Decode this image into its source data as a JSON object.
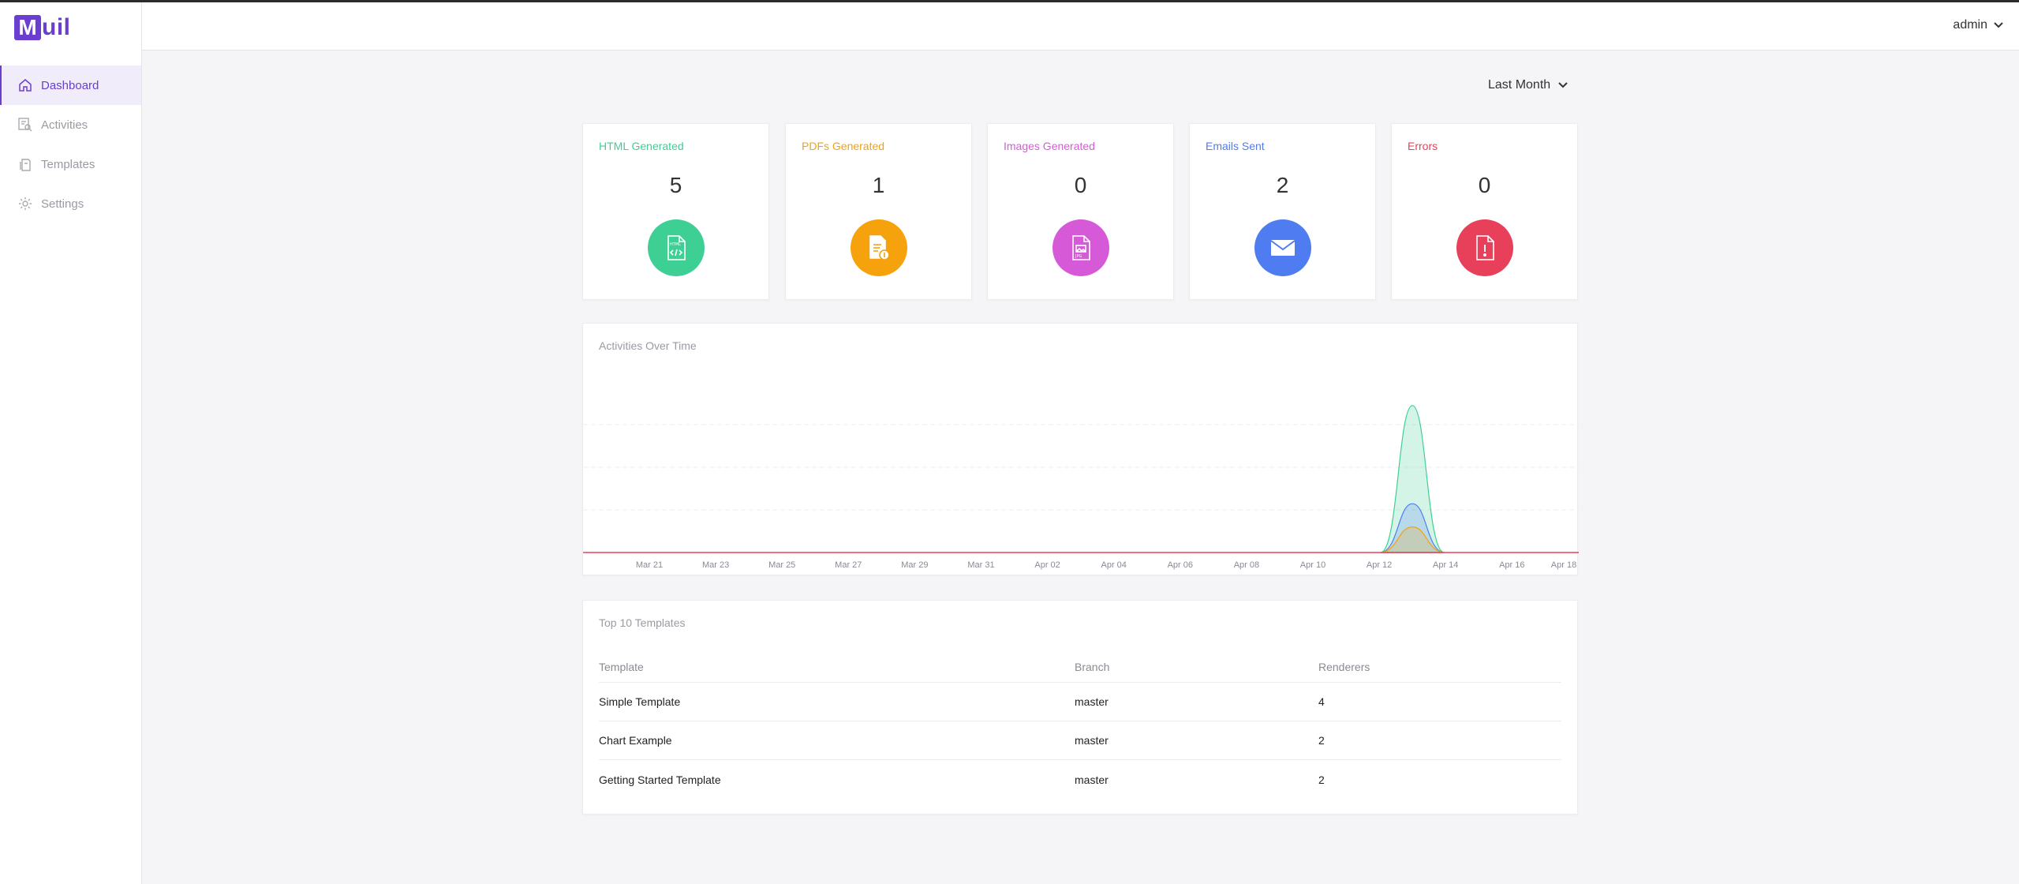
{
  "app": {
    "logo_letter": "M",
    "logo_rest": "uil",
    "user": "admin"
  },
  "sidebar": {
    "items": [
      {
        "label": "Dashboard",
        "icon": "home-icon",
        "active": true
      },
      {
        "label": "Activities",
        "icon": "activities-icon",
        "active": false
      },
      {
        "label": "Templates",
        "icon": "templates-icon",
        "active": false
      },
      {
        "label": "Settings",
        "icon": "gear-icon",
        "active": false
      }
    ]
  },
  "range": {
    "selected": "Last Month"
  },
  "stats": [
    {
      "title": "HTML Generated",
      "value": "5",
      "color": "#3ecf94",
      "icon": "html-file-icon"
    },
    {
      "title": "PDFs Generated",
      "value": "1",
      "color": "#f6a20c",
      "icon": "pdf-file-icon"
    },
    {
      "title": "Images Generated",
      "value": "0",
      "color": "#d65ad8",
      "icon": "image-file-icon"
    },
    {
      "title": "Emails Sent",
      "value": "2",
      "color": "#4f7cf0",
      "icon": "mail-icon"
    },
    {
      "title": "Errors",
      "value": "0",
      "color": "#e8405a",
      "icon": "error-file-icon"
    }
  ],
  "chart": {
    "title": "Activities Over Time"
  },
  "chart_data": {
    "type": "area",
    "x": [
      "Mar 21",
      "Mar 23",
      "Mar 25",
      "Mar 27",
      "Mar 29",
      "Mar 31",
      "Apr 02",
      "Apr 04",
      "Apr 06",
      "Apr 08",
      "Apr 10",
      "Apr 12",
      "Apr 14",
      "Apr 16",
      "Apr 18"
    ],
    "grid": true,
    "series": [
      {
        "color": "#3ecf94",
        "peak_x": "Apr 13",
        "peak_value": 5
      },
      {
        "color": "#4f7cf0",
        "peak_x": "Apr 13",
        "peak_value": 2
      },
      {
        "color": "#f6a20c",
        "peak_x": "Apr 13",
        "peak_value": 1
      },
      {
        "color": "#d65ad8",
        "peak_x": "Apr 13",
        "peak_value": 0
      },
      {
        "color": "#e8405a",
        "peak_x": "Apr 13",
        "peak_value": 0
      }
    ],
    "ylim": [
      0,
      6
    ]
  },
  "table": {
    "title": "Top 10 Templates",
    "headers": [
      "Template",
      "Branch",
      "Renderers"
    ],
    "rows": [
      [
        "Simple Template",
        "master",
        "4"
      ],
      [
        "Chart Example",
        "master",
        "2"
      ],
      [
        "Getting Started Template",
        "master",
        "2"
      ]
    ]
  }
}
